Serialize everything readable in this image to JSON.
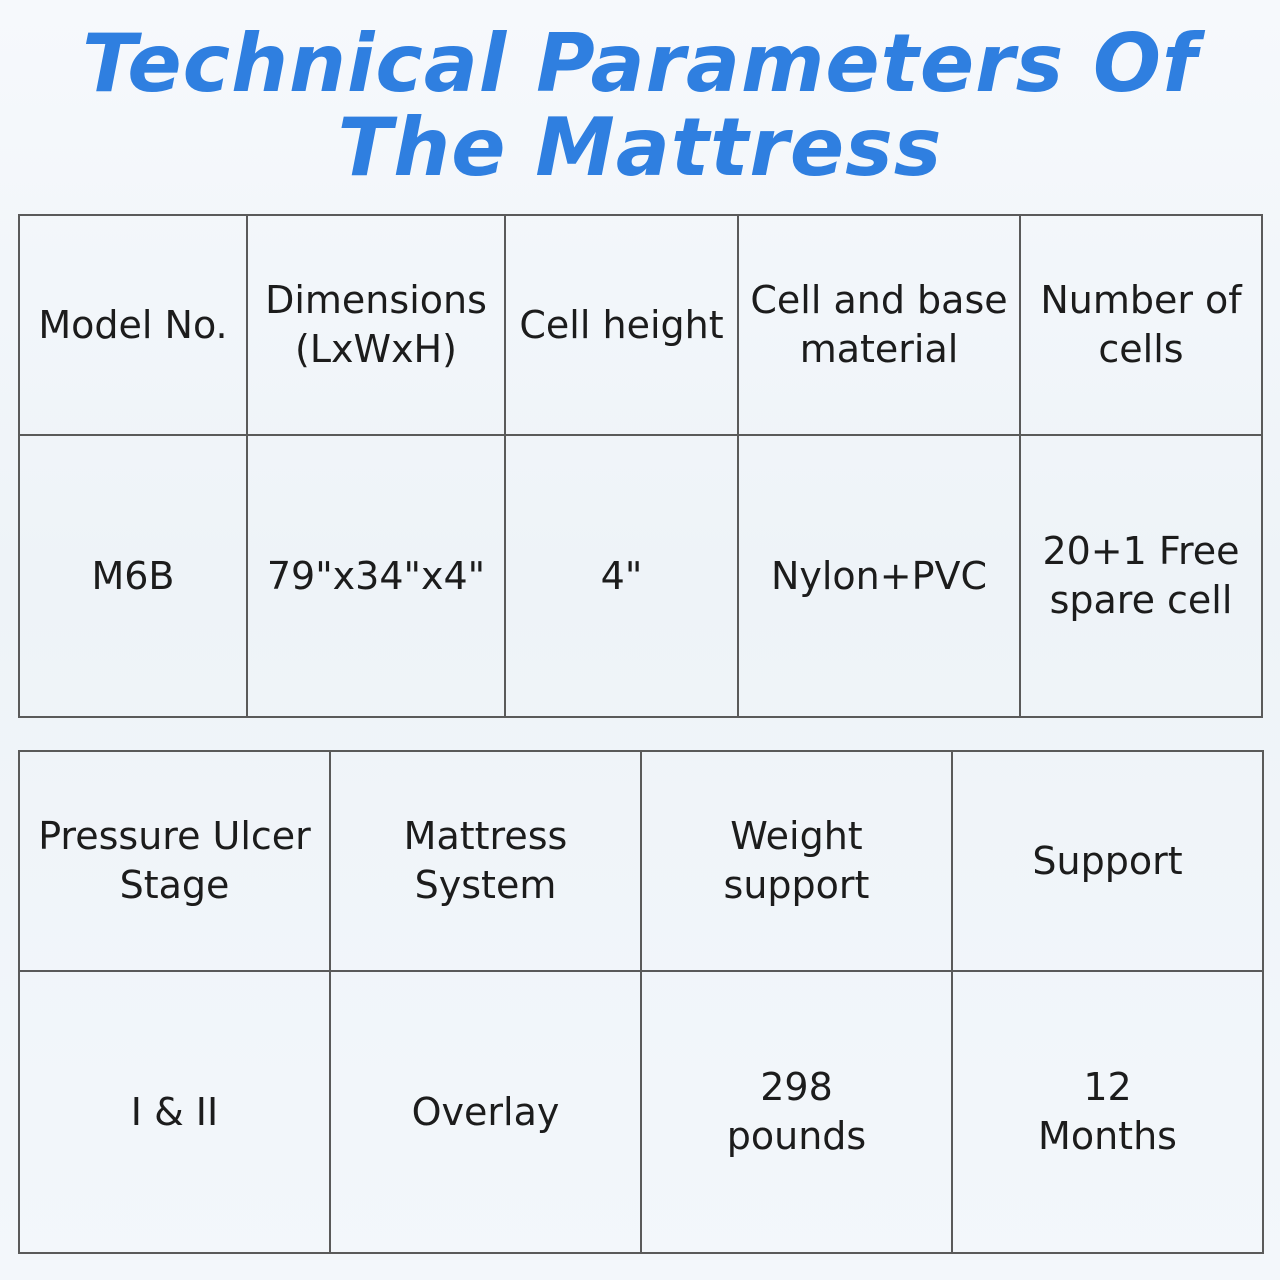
{
  "title": {
    "line1": "Technical Parameters Of",
    "line2": "The Mattress"
  },
  "table_top": {
    "headers": [
      "Model No.",
      "Dimensions\n(LxWxH)",
      "Cell height",
      "Cell and base\nmaterial",
      "Number of\ncells"
    ],
    "values": [
      "M6B",
      "79\"x34\"x4\"",
      "4\"",
      "Nylon+PVC",
      "20+1 Free\nspare cell"
    ]
  },
  "table_bottom": {
    "headers": [
      "Pressure Ulcer\nStage",
      "Mattress\nSystem",
      "Weight\nsupport",
      "Support"
    ],
    "values": [
      "I & II",
      "Overlay",
      "298\npounds",
      "12\nMonths"
    ]
  },
  "colors": {
    "title": "#2f7fe0",
    "border": "#5a5a5a",
    "text": "#1c1c1c"
  }
}
